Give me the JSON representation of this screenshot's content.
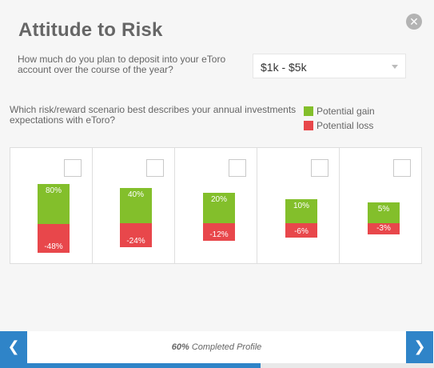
{
  "title": "Attitude to Risk",
  "close_icon": "close-icon",
  "deposit": {
    "question": "How much do you plan to deposit into your eToro account over the course of the year?",
    "selected": "$1k - $5k"
  },
  "scenario": {
    "question": "Which risk/reward scenario best describes your annual investments expectations with eToro?"
  },
  "legend": {
    "gain": "Potential gain",
    "loss": "Potential loss"
  },
  "colors": {
    "gain": "#83bf2b",
    "loss": "#e8474b",
    "accent": "#2f84c8"
  },
  "scenarios": [
    {
      "gain": "80%",
      "loss": "-48%"
    },
    {
      "gain": "40%",
      "loss": "-24%"
    },
    {
      "gain": "20%",
      "loss": "-12%"
    },
    {
      "gain": "10%",
      "loss": "-6%"
    },
    {
      "gain": "5%",
      "loss": "-3%"
    }
  ],
  "footer": {
    "progress_value": "60%",
    "progress_label": "Completed Profile",
    "progress_fraction": 0.6
  }
}
